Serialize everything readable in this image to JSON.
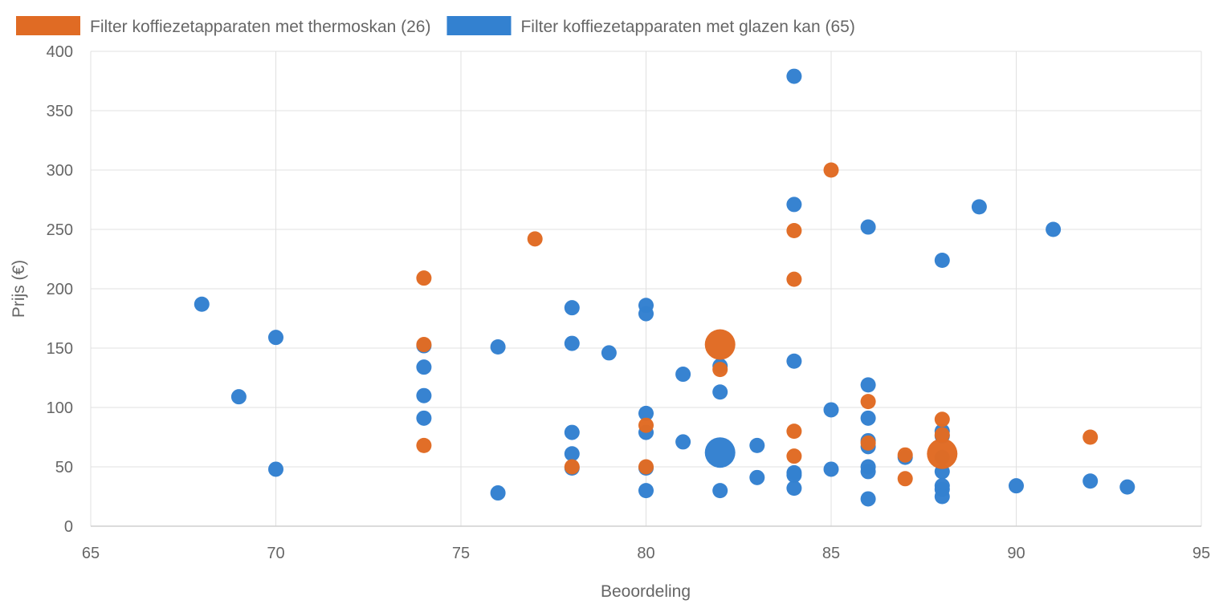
{
  "chart_data": {
    "type": "scatter",
    "xlabel": "Beoordeling",
    "ylabel": "Prijs (€)",
    "xlim": [
      65,
      95
    ],
    "ylim": [
      0,
      400
    ],
    "x_ticks": [
      "65",
      "70",
      "75",
      "80",
      "85",
      "90",
      "95"
    ],
    "y_ticks": [
      "0",
      "50",
      "100",
      "150",
      "200",
      "250",
      "300",
      "350",
      "400"
    ],
    "grid": true,
    "legend_position": "top-left",
    "series": [
      {
        "name": "Filter koffiezetapparaten met glazen kan (65)",
        "color": "#3381d0",
        "points": [
          {
            "x": 68,
            "y": 187
          },
          {
            "x": 69,
            "y": 109
          },
          {
            "x": 70,
            "y": 159
          },
          {
            "x": 70,
            "y": 48
          },
          {
            "x": 74,
            "y": 152
          },
          {
            "x": 74,
            "y": 134
          },
          {
            "x": 74,
            "y": 110
          },
          {
            "x": 74,
            "y": 91
          },
          {
            "x": 76,
            "y": 151
          },
          {
            "x": 76,
            "y": 28
          },
          {
            "x": 78,
            "y": 184
          },
          {
            "x": 78,
            "y": 154
          },
          {
            "x": 78,
            "y": 79
          },
          {
            "x": 78,
            "y": 61
          },
          {
            "x": 78,
            "y": 49
          },
          {
            "x": 79,
            "y": 146
          },
          {
            "x": 80,
            "y": 186
          },
          {
            "x": 80,
            "y": 179
          },
          {
            "x": 80,
            "y": 95
          },
          {
            "x": 80,
            "y": 79
          },
          {
            "x": 80,
            "y": 49
          },
          {
            "x": 80,
            "y": 30
          },
          {
            "x": 81,
            "y": 128
          },
          {
            "x": 81,
            "y": 71
          },
          {
            "x": 82,
            "y": 135
          },
          {
            "x": 82,
            "y": 113
          },
          {
            "x": 82,
            "y": 62,
            "size": "large"
          },
          {
            "x": 82,
            "y": 30
          },
          {
            "x": 83,
            "y": 68
          },
          {
            "x": 83,
            "y": 41
          },
          {
            "x": 84,
            "y": 379
          },
          {
            "x": 84,
            "y": 271
          },
          {
            "x": 84,
            "y": 139
          },
          {
            "x": 84,
            "y": 45
          },
          {
            "x": 84,
            "y": 43
          },
          {
            "x": 84,
            "y": 32
          },
          {
            "x": 85,
            "y": 98
          },
          {
            "x": 85,
            "y": 48
          },
          {
            "x": 86,
            "y": 252
          },
          {
            "x": 86,
            "y": 119
          },
          {
            "x": 86,
            "y": 91
          },
          {
            "x": 86,
            "y": 72
          },
          {
            "x": 86,
            "y": 67
          },
          {
            "x": 86,
            "y": 50
          },
          {
            "x": 86,
            "y": 46
          },
          {
            "x": 86,
            "y": 23
          },
          {
            "x": 87,
            "y": 58
          },
          {
            "x": 88,
            "y": 224
          },
          {
            "x": 88,
            "y": 80
          },
          {
            "x": 88,
            "y": 76
          },
          {
            "x": 88,
            "y": 58
          },
          {
            "x": 88,
            "y": 46
          },
          {
            "x": 88,
            "y": 34
          },
          {
            "x": 88,
            "y": 31
          },
          {
            "x": 88,
            "y": 25
          },
          {
            "x": 89,
            "y": 269
          },
          {
            "x": 90,
            "y": 34
          },
          {
            "x": 91,
            "y": 250
          },
          {
            "x": 92,
            "y": 38
          },
          {
            "x": 93,
            "y": 33
          }
        ]
      },
      {
        "name": "Filter koffiezetapparaten met thermoskan (26)",
        "color": "#e06b24",
        "points": [
          {
            "x": 74,
            "y": 209
          },
          {
            "x": 74,
            "y": 153
          },
          {
            "x": 74,
            "y": 68
          },
          {
            "x": 77,
            "y": 242
          },
          {
            "x": 78,
            "y": 50
          },
          {
            "x": 80,
            "y": 85
          },
          {
            "x": 80,
            "y": 50
          },
          {
            "x": 82,
            "y": 153,
            "size": "large"
          },
          {
            "x": 82,
            "y": 132
          },
          {
            "x": 84,
            "y": 249
          },
          {
            "x": 84,
            "y": 208
          },
          {
            "x": 84,
            "y": 80
          },
          {
            "x": 84,
            "y": 59
          },
          {
            "x": 85,
            "y": 300
          },
          {
            "x": 86,
            "y": 105
          },
          {
            "x": 86,
            "y": 70
          },
          {
            "x": 87,
            "y": 60
          },
          {
            "x": 87,
            "y": 40
          },
          {
            "x": 88,
            "y": 90
          },
          {
            "x": 88,
            "y": 77
          },
          {
            "x": 88,
            "y": 61,
            "size": "large"
          },
          {
            "x": 92,
            "y": 75
          }
        ]
      }
    ],
    "legend_order": [
      1,
      0
    ]
  }
}
